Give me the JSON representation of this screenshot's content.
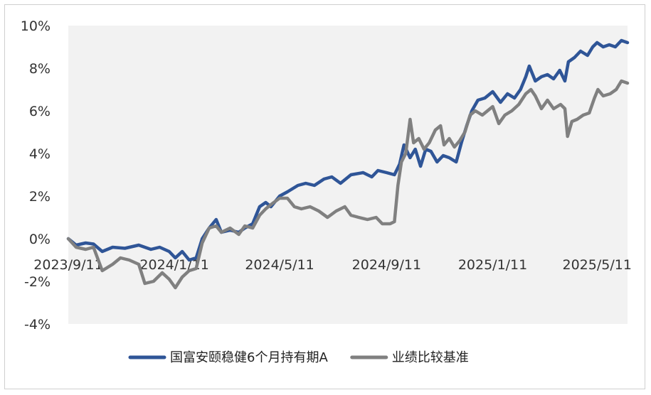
{
  "chart_data": {
    "type": "line",
    "title": "",
    "xlabel": "",
    "ylabel": "",
    "ylim": [
      -4,
      10
    ],
    "y_unit": "%",
    "y_ticks": [
      10,
      8,
      6,
      4,
      2,
      0,
      -2,
      -4
    ],
    "y_tick_labels": [
      "10%",
      "8%",
      "6%",
      "4%",
      "2%",
      "0%",
      "-2%",
      "-4%"
    ],
    "x_range": [
      "2023-09-11",
      "2025-06-15"
    ],
    "x_ticks": [
      {
        "date": "2023-09-11",
        "label": "2023/9/11"
      },
      {
        "date": "2024-01-11",
        "label": "2024/1/11"
      },
      {
        "date": "2024-05-11",
        "label": "2024/5/11"
      },
      {
        "date": "2024-09-11",
        "label": "2024/9/11"
      },
      {
        "date": "2025-01-11",
        "label": "2025/1/11"
      },
      {
        "date": "2025-05-11",
        "label": "2025/5/11"
      }
    ],
    "grid": false,
    "plot_background": "#f2f2f2",
    "legend_position": "bottom",
    "series": [
      {
        "name": "国富安颐稳健6个月持有期A",
        "color": "#2f5597",
        "points": [
          [
            "2023-09-11",
            0.0
          ],
          [
            "2023-09-20",
            -0.3
          ],
          [
            "2023-10-01",
            -0.2
          ],
          [
            "2023-10-10",
            -0.25
          ],
          [
            "2023-10-20",
            -0.6
          ],
          [
            "2023-11-01",
            -0.4
          ],
          [
            "2023-11-15",
            -0.45
          ],
          [
            "2023-12-01",
            -0.3
          ],
          [
            "2023-12-15",
            -0.5
          ],
          [
            "2023-12-25",
            -0.4
          ],
          [
            "2024-01-05",
            -0.6
          ],
          [
            "2024-01-12",
            -0.9
          ],
          [
            "2024-01-20",
            -0.6
          ],
          [
            "2024-01-28",
            -1.0
          ],
          [
            "2024-02-05",
            -0.9
          ],
          [
            "2024-02-12",
            0.0
          ],
          [
            "2024-02-20",
            0.5
          ],
          [
            "2024-02-28",
            0.9
          ],
          [
            "2024-03-05",
            0.3
          ],
          [
            "2024-03-15",
            0.4
          ],
          [
            "2024-03-25",
            0.3
          ],
          [
            "2024-04-01",
            0.5
          ],
          [
            "2024-04-10",
            0.7
          ],
          [
            "2024-04-18",
            1.5
          ],
          [
            "2024-04-25",
            1.7
          ],
          [
            "2024-05-01",
            1.5
          ],
          [
            "2024-05-11",
            2.0
          ],
          [
            "2024-05-20",
            2.2
          ],
          [
            "2024-06-01",
            2.5
          ],
          [
            "2024-06-10",
            2.6
          ],
          [
            "2024-06-20",
            2.5
          ],
          [
            "2024-07-01",
            2.8
          ],
          [
            "2024-07-10",
            2.9
          ],
          [
            "2024-07-20",
            2.6
          ],
          [
            "2024-08-01",
            3.0
          ],
          [
            "2024-08-15",
            3.1
          ],
          [
            "2024-08-25",
            2.9
          ],
          [
            "2024-09-01",
            3.2
          ],
          [
            "2024-09-11",
            3.1
          ],
          [
            "2024-09-20",
            3.0
          ],
          [
            "2024-09-26",
            3.5
          ],
          [
            "2024-10-01",
            4.4
          ],
          [
            "2024-10-08",
            3.8
          ],
          [
            "2024-10-14",
            4.2
          ],
          [
            "2024-10-20",
            3.4
          ],
          [
            "2024-10-26",
            4.2
          ],
          [
            "2024-11-01",
            4.1
          ],
          [
            "2024-11-08",
            3.6
          ],
          [
            "2024-11-15",
            3.9
          ],
          [
            "2024-11-22",
            3.8
          ],
          [
            "2024-11-30",
            3.6
          ],
          [
            "2024-12-06",
            4.5
          ],
          [
            "2024-12-12",
            5.3
          ],
          [
            "2024-12-18",
            6.0
          ],
          [
            "2024-12-25",
            6.5
          ],
          [
            "2025-01-02",
            6.6
          ],
          [
            "2025-01-11",
            6.9
          ],
          [
            "2025-01-20",
            6.4
          ],
          [
            "2025-01-28",
            6.8
          ],
          [
            "2025-02-05",
            6.6
          ],
          [
            "2025-02-12",
            7.0
          ],
          [
            "2025-02-18",
            7.6
          ],
          [
            "2025-02-22",
            8.1
          ],
          [
            "2025-03-01",
            7.4
          ],
          [
            "2025-03-08",
            7.6
          ],
          [
            "2025-03-15",
            7.7
          ],
          [
            "2025-03-22",
            7.5
          ],
          [
            "2025-03-29",
            7.9
          ],
          [
            "2025-04-04",
            7.4
          ],
          [
            "2025-04-08",
            8.3
          ],
          [
            "2025-04-15",
            8.5
          ],
          [
            "2025-04-22",
            8.8
          ],
          [
            "2025-04-30",
            8.6
          ],
          [
            "2025-05-06",
            9.0
          ],
          [
            "2025-05-11",
            9.2
          ],
          [
            "2025-05-18",
            9.0
          ],
          [
            "2025-05-25",
            9.1
          ],
          [
            "2025-06-01",
            9.0
          ],
          [
            "2025-06-08",
            9.3
          ],
          [
            "2025-06-15",
            9.2
          ]
        ]
      },
      {
        "name": "业绩比较基准",
        "color": "#808080",
        "points": [
          [
            "2023-09-11",
            0.0
          ],
          [
            "2023-09-20",
            -0.4
          ],
          [
            "2023-10-01",
            -0.5
          ],
          [
            "2023-10-10",
            -0.4
          ],
          [
            "2023-10-20",
            -1.5
          ],
          [
            "2023-11-01",
            -1.2
          ],
          [
            "2023-11-10",
            -0.9
          ],
          [
            "2023-11-20",
            -1.0
          ],
          [
            "2023-12-01",
            -1.2
          ],
          [
            "2023-12-08",
            -2.1
          ],
          [
            "2023-12-18",
            -2.0
          ],
          [
            "2023-12-28",
            -1.6
          ],
          [
            "2024-01-05",
            -1.9
          ],
          [
            "2024-01-12",
            -2.3
          ],
          [
            "2024-01-20",
            -1.8
          ],
          [
            "2024-01-28",
            -1.5
          ],
          [
            "2024-02-05",
            -1.4
          ],
          [
            "2024-02-12",
            -0.2
          ],
          [
            "2024-02-20",
            0.5
          ],
          [
            "2024-02-28",
            0.6
          ],
          [
            "2024-03-05",
            0.3
          ],
          [
            "2024-03-15",
            0.5
          ],
          [
            "2024-03-25",
            0.2
          ],
          [
            "2024-04-01",
            0.6
          ],
          [
            "2024-04-10",
            0.5
          ],
          [
            "2024-04-18",
            1.1
          ],
          [
            "2024-04-25",
            1.4
          ],
          [
            "2024-05-01",
            1.6
          ],
          [
            "2024-05-11",
            1.9
          ],
          [
            "2024-05-20",
            1.9
          ],
          [
            "2024-05-28",
            1.5
          ],
          [
            "2024-06-05",
            1.4
          ],
          [
            "2024-06-15",
            1.5
          ],
          [
            "2024-06-25",
            1.3
          ],
          [
            "2024-07-05",
            1.0
          ],
          [
            "2024-07-15",
            1.3
          ],
          [
            "2024-07-25",
            1.5
          ],
          [
            "2024-08-01",
            1.1
          ],
          [
            "2024-08-10",
            1.0
          ],
          [
            "2024-08-20",
            0.9
          ],
          [
            "2024-08-30",
            1.0
          ],
          [
            "2024-09-06",
            0.7
          ],
          [
            "2024-09-15",
            0.7
          ],
          [
            "2024-09-20",
            0.8
          ],
          [
            "2024-09-24",
            2.5
          ],
          [
            "2024-09-28",
            3.6
          ],
          [
            "2024-10-03",
            4.0
          ],
          [
            "2024-10-08",
            5.6
          ],
          [
            "2024-10-12",
            4.5
          ],
          [
            "2024-10-18",
            4.7
          ],
          [
            "2024-10-24",
            4.2
          ],
          [
            "2024-10-30",
            4.5
          ],
          [
            "2024-11-06",
            5.1
          ],
          [
            "2024-11-12",
            5.3
          ],
          [
            "2024-11-16",
            4.4
          ],
          [
            "2024-11-22",
            4.7
          ],
          [
            "2024-11-28",
            4.3
          ],
          [
            "2024-12-04",
            4.6
          ],
          [
            "2024-12-10",
            5.0
          ],
          [
            "2024-12-16",
            5.8
          ],
          [
            "2024-12-22",
            6.0
          ],
          [
            "2024-12-30",
            5.8
          ],
          [
            "2025-01-11",
            6.2
          ],
          [
            "2025-01-18",
            5.4
          ],
          [
            "2025-01-25",
            5.8
          ],
          [
            "2025-02-02",
            6.0
          ],
          [
            "2025-02-10",
            6.3
          ],
          [
            "2025-02-18",
            6.8
          ],
          [
            "2025-02-24",
            7.0
          ],
          [
            "2025-03-01",
            6.7
          ],
          [
            "2025-03-08",
            6.1
          ],
          [
            "2025-03-15",
            6.5
          ],
          [
            "2025-03-22",
            6.1
          ],
          [
            "2025-03-30",
            6.3
          ],
          [
            "2025-04-04",
            6.1
          ],
          [
            "2025-04-07",
            4.8
          ],
          [
            "2025-04-12",
            5.5
          ],
          [
            "2025-04-18",
            5.6
          ],
          [
            "2025-04-25",
            5.8
          ],
          [
            "2025-05-02",
            5.9
          ],
          [
            "2025-05-08",
            6.6
          ],
          [
            "2025-05-12",
            7.0
          ],
          [
            "2025-05-18",
            6.7
          ],
          [
            "2025-05-26",
            6.8
          ],
          [
            "2025-06-02",
            7.0
          ],
          [
            "2025-06-08",
            7.4
          ],
          [
            "2025-06-15",
            7.3
          ]
        ]
      }
    ]
  }
}
